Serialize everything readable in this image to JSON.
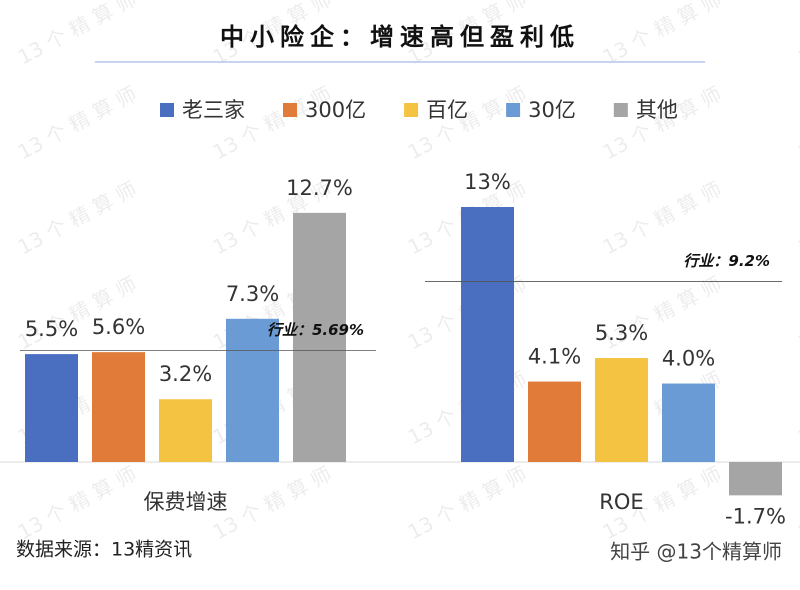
{
  "chart_data": {
    "type": "bar",
    "title": "中小险企：增速高但盈利低",
    "categories": [
      "保费增速",
      "ROE"
    ],
    "series": [
      {
        "name": "老三家",
        "color": "#4a6fc0",
        "values": [
          5.5,
          13
        ],
        "value_labels": [
          "5.5%",
          "13%"
        ]
      },
      {
        "name": "300亿",
        "color": "#e07b39",
        "values": [
          5.6,
          4.1
        ],
        "value_labels": [
          "5.6%",
          "4.1%"
        ]
      },
      {
        "name": "百亿",
        "color": "#f5c342",
        "values": [
          3.2,
          5.3
        ],
        "value_labels": [
          "3.2%",
          "5.3%"
        ]
      },
      {
        "name": "30亿",
        "color": "#6a9bd4",
        "values": [
          7.3,
          4.0
        ],
        "value_labels": [
          "7.3%",
          "4.0%"
        ]
      },
      {
        "name": "其他",
        "color": "#a5a5a5",
        "values": [
          12.7,
          -1.7
        ],
        "value_labels": [
          "12.7%",
          "-1.7%"
        ]
      }
    ],
    "reference_lines": [
      {
        "value": 5.69,
        "label": "行业：5.69%"
      },
      {
        "value": 9.2,
        "label": "行业：9.2%"
      }
    ]
  },
  "source": "数据来源：13精资讯",
  "watermark": "知乎 @13个精算师",
  "tiled_watermark": "13 个 精 算 师"
}
